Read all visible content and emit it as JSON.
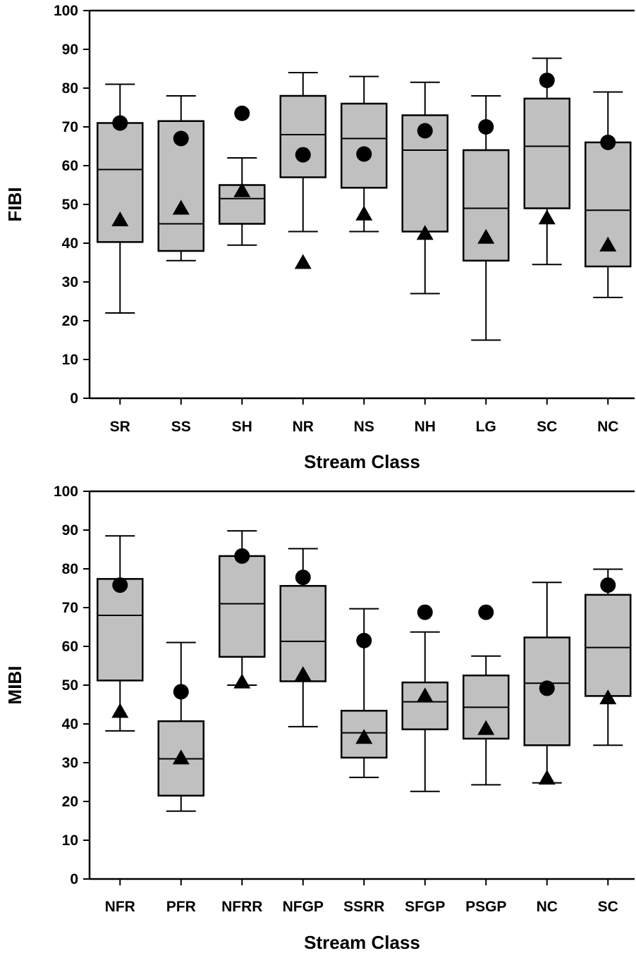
{
  "chart_data": [
    {
      "type": "box",
      "xlabel": "Stream Class",
      "ylabel": "FIBI",
      "ylim": [
        0,
        100
      ],
      "yticks": [
        0,
        10,
        20,
        30,
        40,
        50,
        60,
        70,
        80,
        90,
        100
      ],
      "markers": {
        "circle": "filled circle",
        "triangle": "filled triangle"
      },
      "box_color": "#c0c0c0",
      "categories": [
        {
          "label": "SR",
          "whisker_low": 22,
          "q1": 40.3,
          "median": 59,
          "q3": 71,
          "whisker_high": 81,
          "circle": 71,
          "triangle": 46
        },
        {
          "label": "SS",
          "whisker_low": 35.5,
          "q1": 38,
          "median": 45,
          "q3": 71.5,
          "whisker_high": 78,
          "circle": 67,
          "triangle": 49
        },
        {
          "label": "SH",
          "whisker_low": 39.5,
          "q1": 45,
          "median": 51.5,
          "q3": 55,
          "whisker_high": 62,
          "circle": 73.5,
          "triangle": 53.5
        },
        {
          "label": "NR",
          "whisker_low": 43,
          "q1": 57,
          "median": 68,
          "q3": 78,
          "whisker_high": 84,
          "circle": 62.8,
          "triangle": 35
        },
        {
          "label": "NS",
          "whisker_low": 43,
          "q1": 54.3,
          "median": 67,
          "q3": 76,
          "whisker_high": 83,
          "circle": 63,
          "triangle": 47.5
        },
        {
          "label": "NH",
          "whisker_low": 27,
          "q1": 43,
          "median": 64,
          "q3": 73,
          "whisker_high": 81.5,
          "circle": 69,
          "triangle": 42.5
        },
        {
          "label": "LG",
          "whisker_low": 15,
          "q1": 35.5,
          "median": 49,
          "q3": 64,
          "whisker_high": 78,
          "circle": 70,
          "triangle": 41.5
        },
        {
          "label": "SC",
          "whisker_low": 34.5,
          "q1": 49,
          "median": 65,
          "q3": 77.3,
          "whisker_high": 87.7,
          "circle": 82,
          "triangle": 46.5
        },
        {
          "label": "NC",
          "whisker_low": 26,
          "q1": 34,
          "median": 48.5,
          "q3": 66,
          "whisker_high": 79,
          "circle": 66,
          "triangle": 39.5
        }
      ]
    },
    {
      "type": "box",
      "xlabel": "Stream Class",
      "ylabel": "MIBI",
      "ylim": [
        0,
        100
      ],
      "yticks": [
        0,
        10,
        20,
        30,
        40,
        50,
        60,
        70,
        80,
        90,
        100
      ],
      "markers": {
        "circle": "filled circle",
        "triangle": "filled triangle"
      },
      "box_color": "#c0c0c0",
      "categories": [
        {
          "label": "NFR",
          "whisker_low": 38.2,
          "q1": 51.2,
          "median": 68,
          "q3": 77.4,
          "whisker_high": 88.5,
          "circle": 75.8,
          "triangle": 43.2
        },
        {
          "label": "PFR",
          "whisker_low": 17.5,
          "q1": 21.5,
          "median": 31,
          "q3": 40.7,
          "whisker_high": 61,
          "circle": 48.3,
          "triangle": 31.2
        },
        {
          "label": "NFRR",
          "whisker_low": 50,
          "q1": 57.3,
          "median": 71,
          "q3": 83.3,
          "whisker_high": 89.8,
          "circle": 83.3,
          "triangle": 50.8
        },
        {
          "label": "NFGP",
          "whisker_low": 39.3,
          "q1": 51,
          "median": 61.3,
          "q3": 75.6,
          "whisker_high": 85.2,
          "circle": 77.8,
          "triangle": 52.7
        },
        {
          "label": "SSRR",
          "whisker_low": 26.2,
          "q1": 31.3,
          "median": 37.7,
          "q3": 43.4,
          "whisker_high": 69.7,
          "circle": 61.5,
          "triangle": 36.5
        },
        {
          "label": "SFGP",
          "whisker_low": 22.6,
          "q1": 38.6,
          "median": 45.7,
          "q3": 50.7,
          "whisker_high": 63.7,
          "circle": 68.8,
          "triangle": 47.2
        },
        {
          "label": "PSGP",
          "whisker_low": 24.3,
          "q1": 36.2,
          "median": 44.3,
          "q3": 52.5,
          "whisker_high": 57.5,
          "circle": 68.8,
          "triangle": 38.8
        },
        {
          "label": "NC",
          "whisker_low": 24.8,
          "q1": 34.5,
          "median": 50.5,
          "q3": 62.3,
          "whisker_high": 76.5,
          "circle": 49.2,
          "triangle": 26
        },
        {
          "label": "SC",
          "whisker_low": 34.5,
          "q1": 47.2,
          "median": 59.7,
          "q3": 73.3,
          "whisker_high": 79.9,
          "circle": 75.8,
          "triangle": 46.7
        }
      ]
    }
  ]
}
